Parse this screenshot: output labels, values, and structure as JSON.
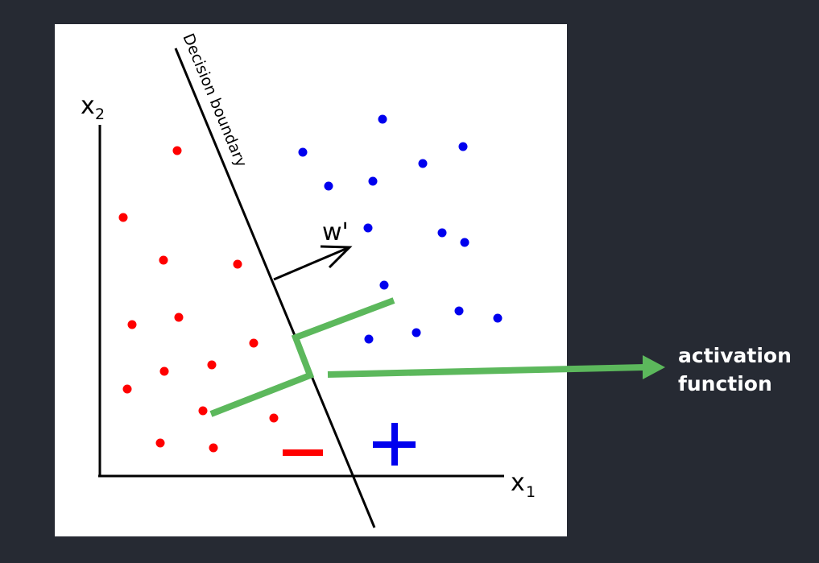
{
  "axes": {
    "x_label": "x",
    "x_sub": "1",
    "y_label": "x",
    "y_sub": "2"
  },
  "boundary_label": "Decision boundary",
  "weight_label": "w'",
  "callout": {
    "line1": "activation",
    "line2": "function"
  },
  "class_signs": {
    "negative": "−",
    "positive": "+"
  },
  "colors": {
    "background": "#262a33",
    "panel": "#ffffff",
    "negative_class": "#ff0000",
    "positive_class": "#0000ee",
    "activation": "#5cb85c",
    "callout_text": "#ffffff"
  }
}
